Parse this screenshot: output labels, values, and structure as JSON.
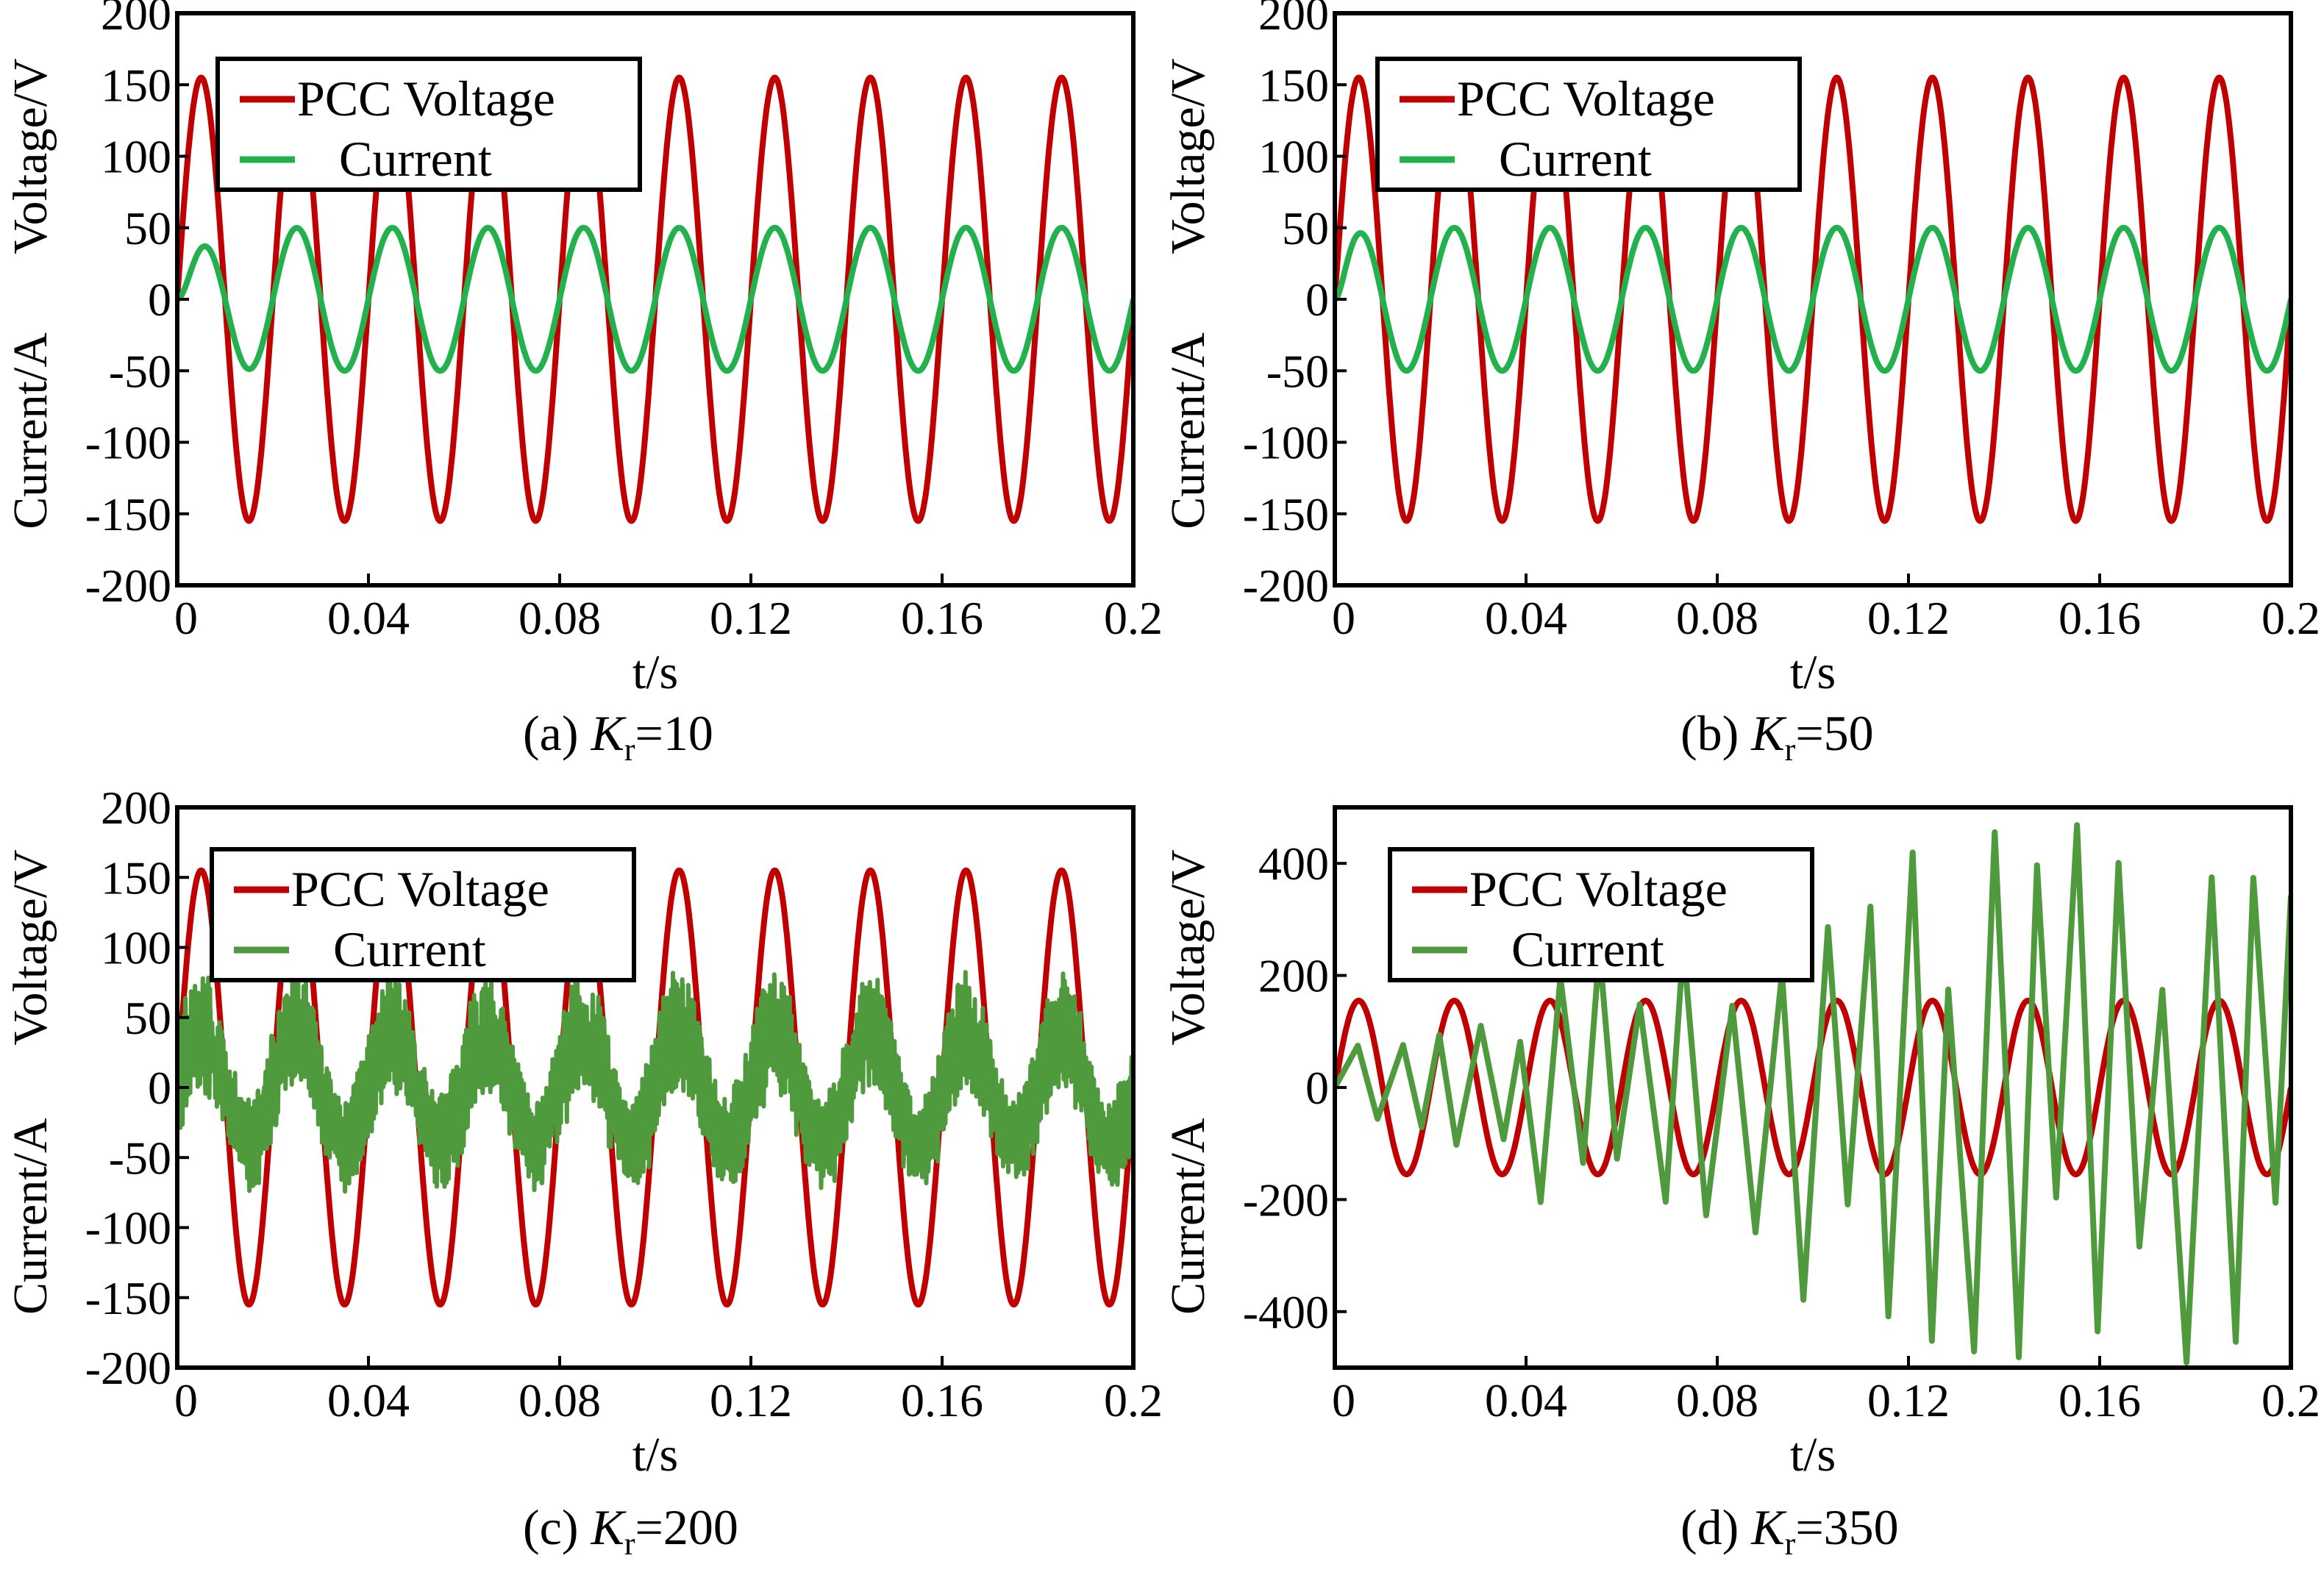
{
  "figure": {
    "colors": {
      "voltage": "#c00000",
      "current": "#22b14c",
      "current_noisy": "#4e9a3c",
      "frame": "#000000"
    }
  },
  "chart_data": [
    {
      "type": "line",
      "panel": "a",
      "caption_prefix": "(a) ",
      "caption_var": "K",
      "caption_sub": "r",
      "caption_value": "=10",
      "ylabel_top": "Voltage/V",
      "ylabel_bottom": "Current/A",
      "xlabel": "t/s",
      "xlim": [
        0,
        0.2
      ],
      "ylim": [
        -200,
        200
      ],
      "xticks": [
        0,
        0.04,
        0.08,
        0.12,
        0.16,
        0.2
      ],
      "xtick_labels": [
        "0",
        "0.04",
        "0.08",
        "0.12",
        "0.16",
        "0.2"
      ],
      "yticks": [
        200,
        150,
        100,
        50,
        0,
        -50,
        -100,
        -150,
        -200
      ],
      "ytick_labels": [
        "200",
        "150",
        "100",
        "50",
        "0",
        "-50",
        "-100",
        "-150",
        "-200"
      ],
      "legend": [
        "PCC Voltage",
        "Current"
      ],
      "series": [
        {
          "name": "PCC Voltage",
          "kind": "sine",
          "amplitude": 155,
          "frequency_hz": 50,
          "phase_deg": 0,
          "color": "#c00000"
        },
        {
          "name": "Current",
          "kind": "sine",
          "amplitude": 50,
          "frequency_hz": 50,
          "phase_deg": 0,
          "color": "#22b14c",
          "startup_ms": 4
        }
      ]
    },
    {
      "type": "line",
      "panel": "b",
      "caption_prefix": "(b) ",
      "caption_var": "K",
      "caption_sub": "r",
      "caption_value": "=50",
      "ylabel_top": "Voltage/V",
      "ylabel_bottom": "Current/A",
      "xlabel": "t/s",
      "xlim": [
        0,
        0.2
      ],
      "ylim": [
        -200,
        200
      ],
      "xticks": [
        0,
        0.04,
        0.08,
        0.12,
        0.16,
        0.2
      ],
      "xtick_labels": [
        "0",
        "0.04",
        "0.08",
        "0.12",
        "0.16",
        "0.2"
      ],
      "yticks": [
        200,
        150,
        100,
        50,
        0,
        -50,
        -100,
        -150,
        -200
      ],
      "ytick_labels": [
        "200",
        "150",
        "100",
        "50",
        "0",
        "-50",
        "-100",
        "-150",
        "-200"
      ],
      "legend": [
        "PCC Voltage",
        "Current"
      ],
      "series": [
        {
          "name": "PCC Voltage",
          "kind": "sine",
          "amplitude": 155,
          "frequency_hz": 50,
          "phase_deg": 0,
          "color": "#c00000"
        },
        {
          "name": "Current",
          "kind": "sine",
          "amplitude": 50,
          "frequency_hz": 50,
          "phase_deg": 0,
          "color": "#22b14c",
          "startup_ms": 2
        }
      ]
    },
    {
      "type": "line",
      "panel": "c",
      "caption_prefix": "(c) ",
      "caption_var": "K",
      "caption_sub": "r",
      "caption_value": "=200",
      "ylabel_top": "Voltage/V",
      "ylabel_bottom": "Current/A",
      "xlabel": "t/s",
      "xlim": [
        0,
        0.2
      ],
      "ylim": [
        -200,
        200
      ],
      "xticks": [
        0,
        0.04,
        0.08,
        0.12,
        0.16,
        0.2
      ],
      "xtick_labels": [
        "0",
        "0.04",
        "0.08",
        "0.12",
        "0.16",
        "0.2"
      ],
      "yticks": [
        200,
        150,
        100,
        50,
        0,
        -50,
        -100,
        -150,
        -200
      ],
      "ytick_labels": [
        "200",
        "150",
        "100",
        "50",
        "0",
        "-50",
        "-100",
        "-150",
        "-200"
      ],
      "legend": [
        "PCC Voltage",
        "Current"
      ],
      "series": [
        {
          "name": "PCC Voltage",
          "kind": "sine",
          "amplitude": 155,
          "frequency_hz": 50,
          "phase_deg": 0,
          "color": "#c00000"
        },
        {
          "name": "Current",
          "kind": "noisy_sine",
          "amplitude": 40,
          "frequency_hz": 50,
          "phase_deg": 0,
          "ripple_amplitude": 35,
          "color": "#4e9a3c"
        }
      ]
    },
    {
      "type": "line",
      "panel": "d",
      "caption_prefix": "(d) ",
      "caption_var": "K",
      "caption_sub": "r",
      "caption_value": "=350",
      "ylabel_top": "Voltage/V",
      "ylabel_bottom": "Current/A",
      "xlabel": "t/s",
      "xlim": [
        0,
        0.2
      ],
      "ylim": [
        -500,
        500
      ],
      "xticks": [
        0,
        0.04,
        0.08,
        0.12,
        0.16,
        0.2
      ],
      "xtick_labels": [
        "0",
        "0.04",
        "0.08",
        "0.12",
        "0.16",
        "0.2"
      ],
      "yticks": [
        400,
        200,
        0,
        -200,
        -400
      ],
      "ytick_labels": [
        "400",
        "200",
        "0",
        "-200",
        "-400"
      ],
      "legend": [
        "PCC Voltage",
        "Current"
      ],
      "series": [
        {
          "name": "PCC Voltage",
          "kind": "sine",
          "amplitude": 155,
          "frequency_hz": 50,
          "phase_deg": 0,
          "color": "#c00000"
        },
        {
          "name": "Current",
          "kind": "unstable",
          "peak_max": 500,
          "frequency_hz": 110,
          "color": "#4e9a3c"
        }
      ]
    }
  ]
}
